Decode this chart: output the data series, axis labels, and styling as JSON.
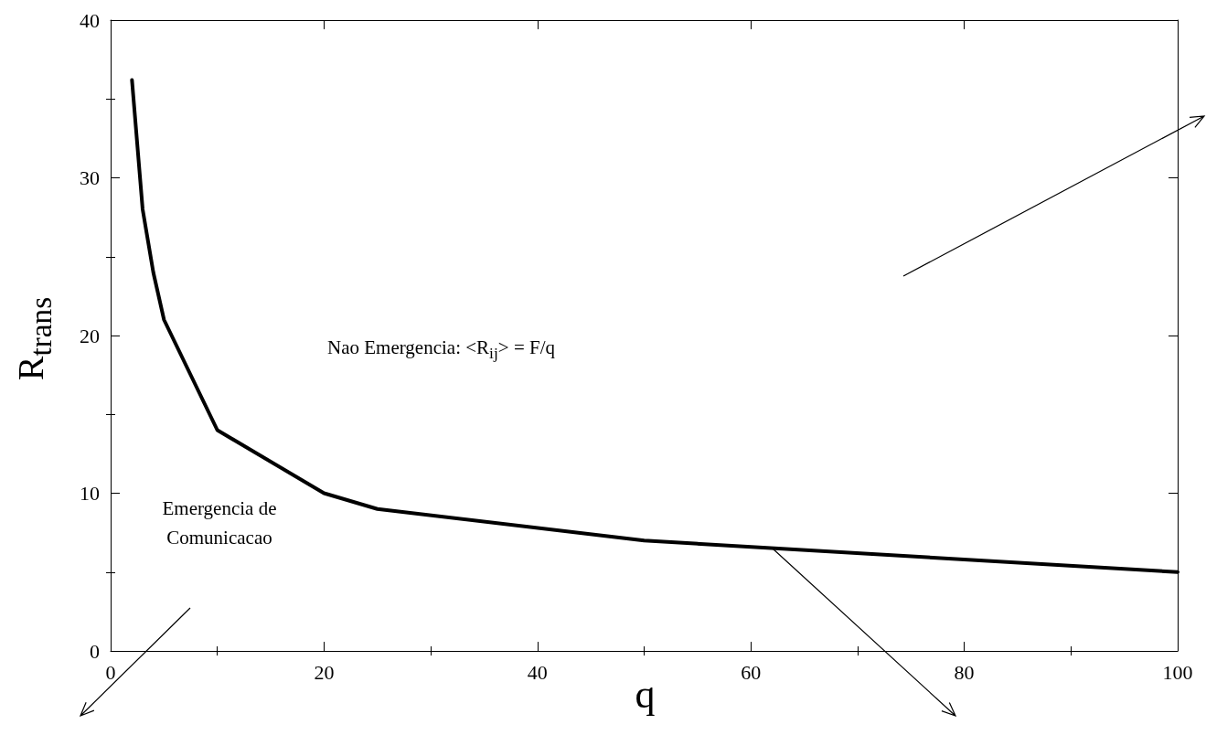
{
  "chart_data": {
    "type": "line",
    "xlabel": "q",
    "ylabel": "R$_{trans}$",
    "x": [
      2,
      3,
      4,
      5,
      10,
      20,
      25,
      50,
      100
    ],
    "series": [
      {
        "color": "#000000",
        "values": [
          36.2,
          28,
          24,
          21,
          14,
          10,
          9,
          7,
          5
        ]
      }
    ],
    "xlim": [
      0,
      100
    ],
    "xticks": [
      0,
      20,
      40,
      60,
      80,
      100
    ],
    "ylim": [
      0,
      40
    ],
    "yticks": [
      0,
      10,
      20,
      30,
      40
    ],
    "grid": false,
    "marker": "none",
    "line_style": "solid",
    "annotations": [
      "Emergencia de\nComunicacao",
      "Nao Emergencia: <R$_{ij}$> = F/q"
    ]
  }
}
